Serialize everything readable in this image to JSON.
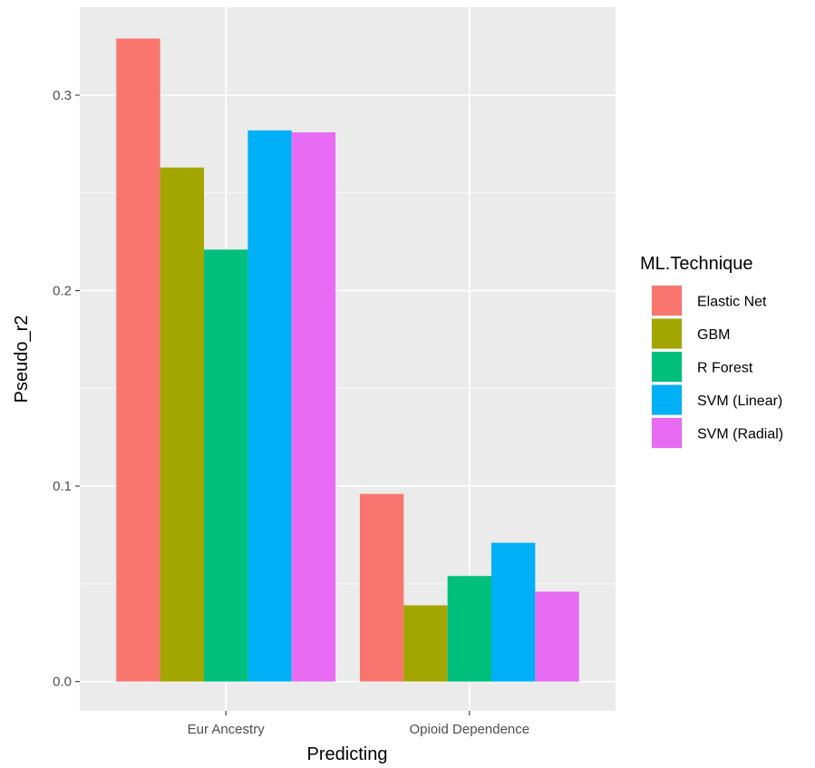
{
  "chart_data": {
    "type": "bar",
    "xlabel": "Predicting",
    "ylabel": "Pseudo_r2",
    "categories": [
      "Eur Ancestry",
      "Opioid Dependence"
    ],
    "ylim": [
      -0.015,
      0.345
    ],
    "y_ticks": [
      0.0,
      0.1,
      0.2,
      0.3
    ],
    "y_tick_labels": [
      "0.0",
      "0.1",
      "0.2",
      "0.3"
    ],
    "grid": true,
    "legend": {
      "title": "ML.Technique",
      "position": "right"
    },
    "series": [
      {
        "name": "Elastic Net",
        "color": "#F8766D",
        "values": [
          0.329,
          0.096
        ]
      },
      {
        "name": "GBM",
        "color": "#A3A500",
        "values": [
          0.263,
          0.039
        ]
      },
      {
        "name": "R Forest",
        "color": "#00BF7D",
        "values": [
          0.221,
          0.054
        ]
      },
      {
        "name": "SVM (Linear)",
        "color": "#00B0F6",
        "values": [
          0.282,
          0.071
        ]
      },
      {
        "name": "SVM (Radial)",
        "color": "#E76BF3",
        "values": [
          0.281,
          0.046
        ]
      }
    ]
  }
}
